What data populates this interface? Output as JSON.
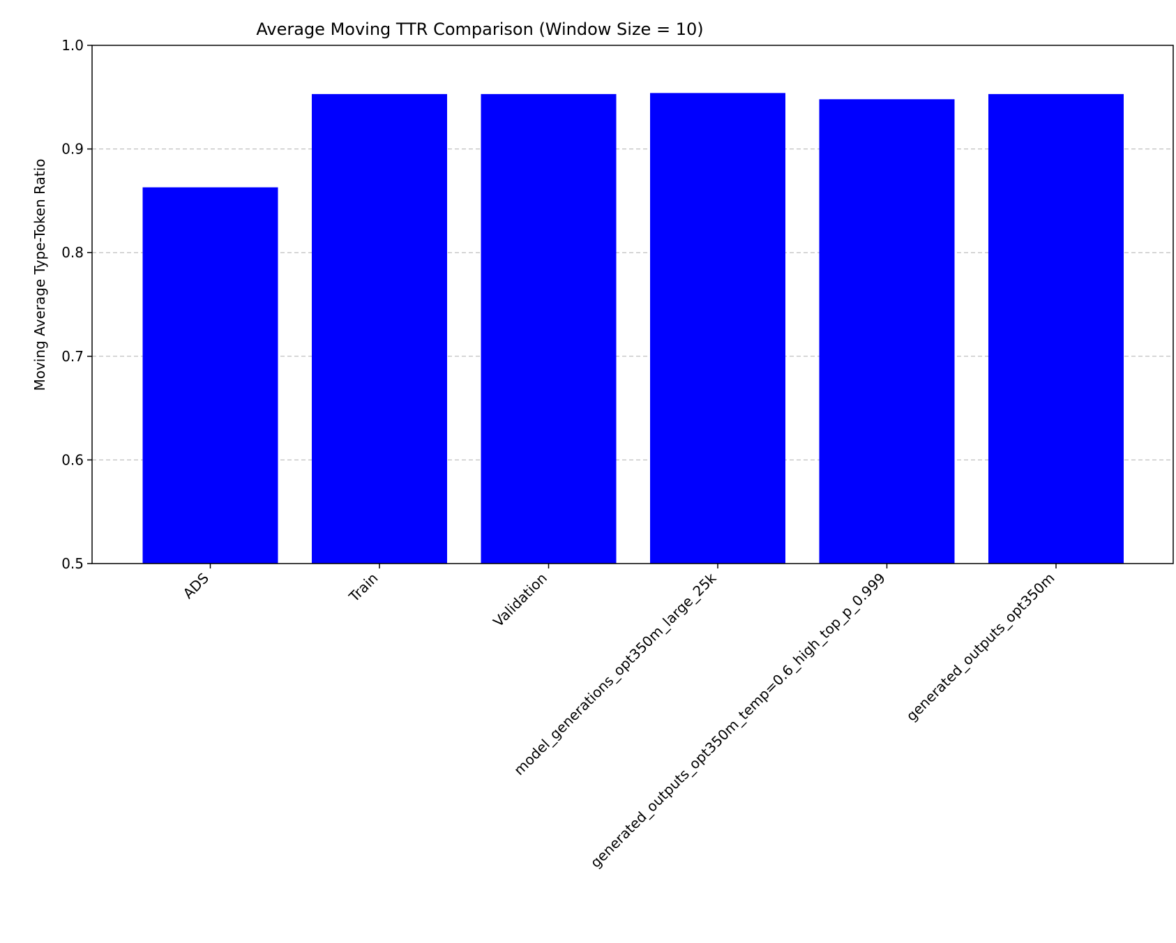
{
  "chart_data": {
    "type": "bar",
    "title": "Average Moving TTR Comparison (Window Size = 10)",
    "xlabel": "",
    "ylabel": "Moving Average Type-Token Ratio",
    "categories": [
      "ADS",
      "Train",
      "Validation",
      "model_generations_opt350m_large_25k",
      "generated_outputs_opt350m_temp=0.6_high_top_p_0.999",
      "generated_outputs_opt350m"
    ],
    "values": [
      0.863,
      0.953,
      0.953,
      0.954,
      0.948,
      0.953
    ],
    "ylim": [
      0.5,
      1.0
    ],
    "yticks": [
      0.5,
      0.6,
      0.7,
      0.8,
      0.9,
      1.0
    ],
    "ytick_labels": [
      "0.5",
      "0.6",
      "0.7",
      "0.8",
      "0.9",
      "1.0"
    ],
    "grid": "y-dashed",
    "bar_color": "#0000ff",
    "grid_color": "#b0b0b0"
  }
}
